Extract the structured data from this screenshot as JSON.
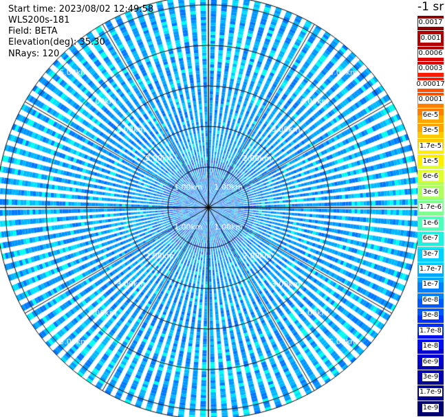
{
  "header": {
    "start_time": "Start time: 2023/08/02 12:49:58",
    "instrument": "WLS200s-181",
    "field": "Field: BETA",
    "elevation": "Elevation(deg): 35.30",
    "nrays": "NRays: 120"
  },
  "units_label": "-1 sr",
  "range_labels": [
    "1.00km",
    "2.00km",
    "3.00km",
    "4.00km",
    "5.00km"
  ],
  "colorbar": {
    "labels": [
      "0.0017",
      "0.001",
      "0.0006",
      "0.0003",
      "0.00017",
      "0.0001",
      "6e-5",
      "3e-5",
      "1.7e-5",
      "1e-5",
      "6e-6",
      "3e-6",
      "1.7e-6",
      "1e-6",
      "6e-7",
      "3e-7",
      "1.7e-7",
      "1e-7",
      "6e-8",
      "3e-8",
      "1.7e-8",
      "1e-8",
      "6e-9",
      "3e-9",
      "1.7e-9",
      "1e-9"
    ],
    "colors": [
      "#8b0000",
      "#b40000",
      "#dc0000",
      "#ff1a00",
      "#ff5000",
      "#ff8000",
      "#ffa500",
      "#ffc800",
      "#ffee00",
      "#e0ff30",
      "#b0ff60",
      "#80ff90",
      "#50ffb8",
      "#20f0e0",
      "#00d0ff",
      "#00a8ff",
      "#0080ff",
      "#0058ff",
      "#0030ff",
      "#0010ee",
      "#0000d0",
      "#0000b0",
      "#000090",
      "#000070"
    ]
  }
}
